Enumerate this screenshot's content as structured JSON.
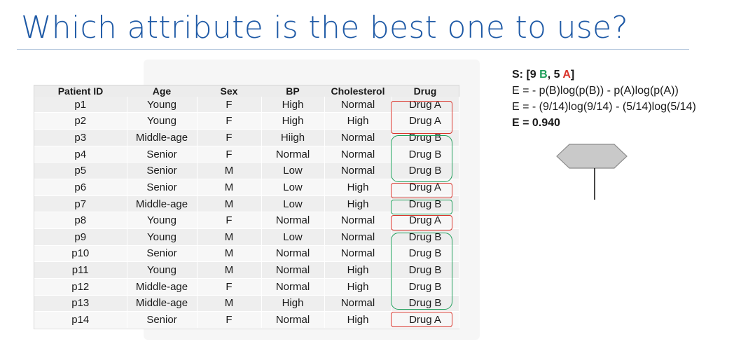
{
  "title": "Which attribute is the best one to use?",
  "table": {
    "headers": [
      "Patient ID",
      "Age",
      "Sex",
      "BP",
      "Cholesterol",
      "Drug"
    ],
    "rows": [
      [
        "p1",
        "Young",
        "F",
        "High",
        "Normal",
        "Drug A"
      ],
      [
        "p2",
        "Young",
        "F",
        "High",
        "High",
        "Drug A"
      ],
      [
        "p3",
        "Middle-age",
        "F",
        "Hiigh",
        "Normal",
        "Drug B"
      ],
      [
        "p4",
        "Senior",
        "F",
        "Normal",
        "Normal",
        "Drug B"
      ],
      [
        "p5",
        "Senior",
        "M",
        "Low",
        "Normal",
        "Drug B"
      ],
      [
        "p6",
        "Senior",
        "M",
        "Low",
        "High",
        "Drug A"
      ],
      [
        "p7",
        "Middle-age",
        "M",
        "Low",
        "High",
        "Drug B"
      ],
      [
        "p8",
        "Young",
        "F",
        "Normal",
        "Normal",
        "Drug A"
      ],
      [
        "p9",
        "Young",
        "M",
        "Low",
        "Normal",
        "Drug B"
      ],
      [
        "p10",
        "Senior",
        "M",
        "Normal",
        "Normal",
        "Drug B"
      ],
      [
        "p11",
        "Young",
        "M",
        "Normal",
        "High",
        "Drug B"
      ],
      [
        "p12",
        "Middle-age",
        "F",
        "Normal",
        "High",
        "Drug B"
      ],
      [
        "p13",
        "Middle-age",
        "M",
        "High",
        "Normal",
        "Drug B"
      ],
      [
        "p14",
        "Senior",
        "F",
        "Normal",
        "High",
        "Drug A"
      ]
    ]
  },
  "entropy": {
    "s_prefix": "S: [9 ",
    "s_b": "B",
    "s_mid": ", 5 ",
    "s_a": "A",
    "s_suffix": "]",
    "formula1": "E = - p(B)log(p(B)) - p(A)log(p(A))",
    "formula2": "E = - (9/14)log(9/14) - (5/14)log(5/14)",
    "result": "E = 0.940"
  },
  "colors": {
    "title": "#1f5aa6",
    "drug_a": "#d9342b",
    "drug_b": "#1e9e5a"
  }
}
